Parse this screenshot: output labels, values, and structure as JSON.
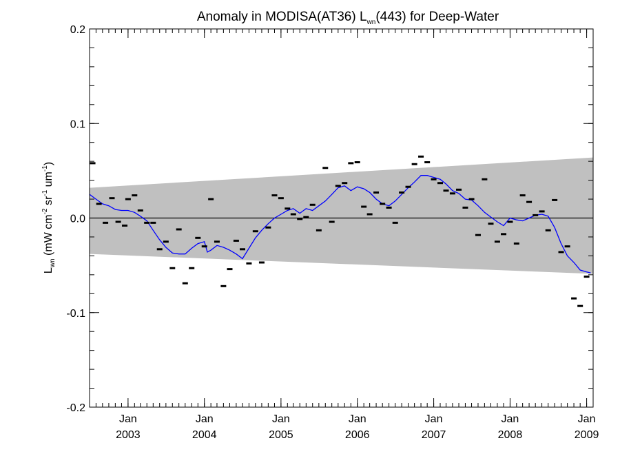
{
  "chart_data": {
    "type": "scatter",
    "title": {
      "prefix": "Anomaly in MODISA(AT36) L",
      "subscript": "wn",
      "suffix": "(443) for Deep-Water"
    },
    "ylabel": {
      "base": "L",
      "base_sub": "wn",
      "units_open": " (mW cm",
      "exp1": "-2",
      "mid": " sr",
      "exp2": "-1",
      "tail": " um",
      "exp3": "-1",
      "close": ")"
    },
    "xlim": [
      "2002-07-01",
      "2009-02-01"
    ],
    "ylim": [
      -0.2,
      0.2
    ],
    "y_ticks": [
      -0.2,
      -0.1,
      0.0,
      0.1,
      0.2
    ],
    "y_tick_labels": [
      "-0.2",
      "-0.1",
      "0.0",
      "0.1",
      "0.2"
    ],
    "x_ticks": [
      {
        "date": "2003-01-01",
        "month": "Jan",
        "year": "2003"
      },
      {
        "date": "2004-01-01",
        "month": "Jan",
        "year": "2004"
      },
      {
        "date": "2005-01-01",
        "month": "Jan",
        "year": "2005"
      },
      {
        "date": "2006-01-01",
        "month": "Jan",
        "year": "2006"
      },
      {
        "date": "2007-01-01",
        "month": "Jan",
        "year": "2007"
      },
      {
        "date": "2008-01-01",
        "month": "Jan",
        "year": "2008"
      },
      {
        "date": "2009-01-01",
        "month": "Jan",
        "year": "2009"
      }
    ],
    "band": {
      "color": "#c0c0c0",
      "start": {
        "date": "2002-07-01",
        "upper": 0.032,
        "lower": -0.038
      },
      "end": {
        "date": "2009-02-01",
        "upper": 0.064,
        "lower": -0.059
      }
    },
    "zero_line": 0.0,
    "points_color": "#000000",
    "line_color": "#0000ff",
    "points": [
      [
        "2002-07-16",
        0.058
      ],
      [
        "2002-08-15",
        0.015
      ],
      [
        "2002-09-15",
        -0.005
      ],
      [
        "2002-10-16",
        0.021
      ],
      [
        "2002-11-15",
        -0.004
      ],
      [
        "2002-12-16",
        -0.008
      ],
      [
        "2003-01-01",
        0.02
      ],
      [
        "2003-02-01",
        0.024
      ],
      [
        "2003-03-01",
        0.008
      ],
      [
        "2003-04-01",
        -0.005
      ],
      [
        "2003-05-01",
        -0.005
      ],
      [
        "2003-06-01",
        -0.033
      ],
      [
        "2003-07-01",
        -0.025
      ],
      [
        "2003-08-01",
        -0.053
      ],
      [
        "2003-09-01",
        -0.012
      ],
      [
        "2003-10-01",
        -0.069
      ],
      [
        "2003-11-01",
        -0.053
      ],
      [
        "2003-12-01",
        -0.021
      ],
      [
        "2004-01-01",
        -0.03
      ],
      [
        "2004-02-01",
        0.02
      ],
      [
        "2004-03-01",
        -0.025
      ],
      [
        "2004-04-01",
        -0.072
      ],
      [
        "2004-05-01",
        -0.054
      ],
      [
        "2004-06-01",
        -0.024
      ],
      [
        "2004-07-01",
        -0.033
      ],
      [
        "2004-08-01",
        -0.048
      ],
      [
        "2004-09-01",
        -0.014
      ],
      [
        "2004-10-01",
        -0.047
      ],
      [
        "2004-11-01",
        -0.01
      ],
      [
        "2004-12-01",
        0.024
      ],
      [
        "2005-01-01",
        0.021
      ],
      [
        "2005-02-01",
        0.01
      ],
      [
        "2005-03-01",
        0.004
      ],
      [
        "2005-04-01",
        -0.001
      ],
      [
        "2005-05-01",
        0.001
      ],
      [
        "2005-06-01",
        0.014
      ],
      [
        "2005-07-01",
        -0.013
      ],
      [
        "2005-08-01",
        0.053
      ],
      [
        "2005-09-01",
        -0.004
      ],
      [
        "2005-10-01",
        0.034
      ],
      [
        "2005-11-01",
        0.037
      ],
      [
        "2005-12-01",
        0.058
      ],
      [
        "2006-01-01",
        0.059
      ],
      [
        "2006-02-01",
        0.012
      ],
      [
        "2006-03-01",
        0.004
      ],
      [
        "2006-04-01",
        0.027
      ],
      [
        "2006-05-01",
        0.015
      ],
      [
        "2006-06-01",
        0.011
      ],
      [
        "2006-07-01",
        -0.005
      ],
      [
        "2006-08-01",
        0.027
      ],
      [
        "2006-09-01",
        0.033
      ],
      [
        "2006-10-01",
        0.057
      ],
      [
        "2006-11-01",
        0.065
      ],
      [
        "2006-12-01",
        0.059
      ],
      [
        "2007-01-01",
        0.041
      ],
      [
        "2007-02-01",
        0.037
      ],
      [
        "2007-03-01",
        0.029
      ],
      [
        "2007-04-01",
        0.026
      ],
      [
        "2007-05-01",
        0.03
      ],
      [
        "2007-06-01",
        0.011
      ],
      [
        "2007-07-01",
        0.02
      ],
      [
        "2007-08-01",
        -0.018
      ],
      [
        "2007-09-01",
        0.041
      ],
      [
        "2007-10-01",
        -0.006
      ],
      [
        "2007-11-01",
        -0.025
      ],
      [
        "2007-12-01",
        -0.017
      ],
      [
        "2008-01-01",
        -0.004
      ],
      [
        "2008-02-01",
        -0.027
      ],
      [
        "2008-03-01",
        0.024
      ],
      [
        "2008-04-01",
        0.017
      ],
      [
        "2008-05-01",
        0.003
      ],
      [
        "2008-06-01",
        0.007
      ],
      [
        "2008-07-01",
        -0.013
      ],
      [
        "2008-08-01",
        0.019
      ],
      [
        "2008-09-01",
        -0.036
      ],
      [
        "2008-10-01",
        -0.03
      ],
      [
        "2008-11-01",
        -0.085
      ],
      [
        "2008-12-01",
        -0.093
      ],
      [
        "2009-01-01",
        -0.062
      ]
    ],
    "line": [
      [
        "2002-07-01",
        0.025
      ],
      [
        "2002-08-01",
        0.02
      ],
      [
        "2002-09-01",
        0.015
      ],
      [
        "2002-10-01",
        0.013
      ],
      [
        "2002-11-01",
        0.009
      ],
      [
        "2002-12-01",
        0.008
      ],
      [
        "2003-01-01",
        0.008
      ],
      [
        "2003-02-01",
        0.006
      ],
      [
        "2003-03-01",
        0.002
      ],
      [
        "2003-04-01",
        -0.003
      ],
      [
        "2003-05-01",
        -0.013
      ],
      [
        "2003-06-01",
        -0.023
      ],
      [
        "2003-07-01",
        -0.031
      ],
      [
        "2003-08-01",
        -0.037
      ],
      [
        "2003-09-01",
        -0.038
      ],
      [
        "2003-10-01",
        -0.038
      ],
      [
        "2003-11-01",
        -0.032
      ],
      [
        "2003-12-01",
        -0.027
      ],
      [
        "2004-01-01",
        -0.025
      ],
      [
        "2004-01-15",
        -0.036
      ],
      [
        "2004-02-01",
        -0.034
      ],
      [
        "2004-03-01",
        -0.029
      ],
      [
        "2004-04-01",
        -0.031
      ],
      [
        "2004-05-01",
        -0.034
      ],
      [
        "2004-06-01",
        -0.038
      ],
      [
        "2004-07-01",
        -0.043
      ],
      [
        "2004-08-01",
        -0.032
      ],
      [
        "2004-09-01",
        -0.021
      ],
      [
        "2004-10-01",
        -0.013
      ],
      [
        "2004-11-01",
        -0.006
      ],
      [
        "2004-12-01",
        0.0
      ],
      [
        "2005-01-01",
        0.004
      ],
      [
        "2005-02-01",
        0.008
      ],
      [
        "2005-03-01",
        0.01
      ],
      [
        "2005-04-01",
        0.005
      ],
      [
        "2005-05-01",
        0.01
      ],
      [
        "2005-06-01",
        0.008
      ],
      [
        "2005-07-01",
        0.013
      ],
      [
        "2005-08-01",
        0.018
      ],
      [
        "2005-09-01",
        0.025
      ],
      [
        "2005-10-01",
        0.032
      ],
      [
        "2005-11-01",
        0.034
      ],
      [
        "2005-12-01",
        0.029
      ],
      [
        "2006-01-01",
        0.033
      ],
      [
        "2006-02-01",
        0.031
      ],
      [
        "2006-03-01",
        0.027
      ],
      [
        "2006-04-01",
        0.02
      ],
      [
        "2006-05-01",
        0.015
      ],
      [
        "2006-06-01",
        0.013
      ],
      [
        "2006-07-01",
        0.018
      ],
      [
        "2006-08-01",
        0.025
      ],
      [
        "2006-09-01",
        0.032
      ],
      [
        "2006-10-01",
        0.038
      ],
      [
        "2006-11-01",
        0.045
      ],
      [
        "2006-12-01",
        0.045
      ],
      [
        "2007-01-01",
        0.043
      ],
      [
        "2007-02-01",
        0.041
      ],
      [
        "2007-03-01",
        0.036
      ],
      [
        "2007-04-01",
        0.029
      ],
      [
        "2007-05-01",
        0.026
      ],
      [
        "2007-06-01",
        0.02
      ],
      [
        "2007-07-01",
        0.019
      ],
      [
        "2007-08-01",
        0.013
      ],
      [
        "2007-09-01",
        0.006
      ],
      [
        "2007-10-01",
        0.001
      ],
      [
        "2007-11-01",
        -0.004
      ],
      [
        "2007-12-01",
        -0.008
      ],
      [
        "2008-01-01",
        0.0
      ],
      [
        "2008-02-01",
        -0.002
      ],
      [
        "2008-03-01",
        -0.003
      ],
      [
        "2008-04-01",
        0.0
      ],
      [
        "2008-05-01",
        0.003
      ],
      [
        "2008-06-01",
        0.004
      ],
      [
        "2008-07-01",
        0.002
      ],
      [
        "2008-08-01",
        -0.01
      ],
      [
        "2008-09-01",
        -0.027
      ],
      [
        "2008-10-01",
        -0.04
      ],
      [
        "2008-11-01",
        -0.047
      ],
      [
        "2008-12-01",
        -0.055
      ],
      [
        "2009-01-01",
        -0.057
      ],
      [
        "2009-01-20",
        -0.058
      ]
    ]
  }
}
